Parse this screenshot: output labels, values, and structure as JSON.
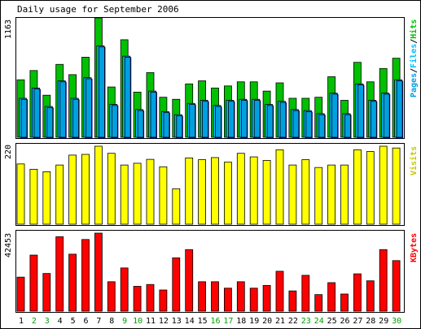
{
  "title": "Daily usage for September 2006",
  "colors": {
    "hits": "#00C000",
    "files": "#00C0FF",
    "pages": "#00A0E0",
    "visits": "#FFFF00",
    "kbytes": "#FF0000",
    "weekend_label": "#00A000",
    "frame": "#000000",
    "background": "#FFFFFF"
  },
  "chart_data": [
    {
      "type": "bar",
      "name": "hits-files-pages",
      "ymax_label": "1163",
      "ylim": [
        0,
        1163
      ],
      "legend": {
        "pages": "Pages",
        "sep1": "/",
        "files": "Files",
        "sep2": "/",
        "hits": "Hits"
      },
      "categories": [
        "1",
        "2",
        "3",
        "4",
        "5",
        "6",
        "7",
        "8",
        "9",
        "10",
        "11",
        "12",
        "13",
        "14",
        "15",
        "16",
        "17",
        "18",
        "19",
        "20",
        "21",
        "22",
        "23",
        "24",
        "25",
        "26",
        "27",
        "28",
        "29",
        "30"
      ],
      "series": [
        {
          "name": "Hits",
          "values": [
            560,
            650,
            410,
            710,
            610,
            780,
            1163,
            490,
            950,
            440,
            630,
            390,
            370,
            520,
            550,
            480,
            500,
            540,
            540,
            450,
            530,
            380,
            380,
            390,
            590,
            360,
            730,
            540,
            670,
            770
          ]
        },
        {
          "name": "Files",
          "values": [
            380,
            480,
            300,
            550,
            380,
            580,
            890,
            320,
            790,
            270,
            450,
            250,
            220,
            330,
            360,
            310,
            360,
            370,
            370,
            320,
            350,
            270,
            260,
            230,
            430,
            230,
            520,
            360,
            430,
            560
          ]
        },
        {
          "name": "Pages",
          "values": [
            370,
            470,
            290,
            540,
            370,
            570,
            880,
            310,
            780,
            260,
            440,
            240,
            210,
            320,
            350,
            300,
            350,
            360,
            360,
            310,
            340,
            260,
            250,
            220,
            420,
            220,
            510,
            350,
            420,
            550
          ]
        }
      ]
    },
    {
      "type": "bar",
      "name": "visits",
      "ymax_label": "220",
      "ylim": [
        0,
        220
      ],
      "legend": {
        "visits": "Visits"
      },
      "categories": [
        "1",
        "2",
        "3",
        "4",
        "5",
        "6",
        "7",
        "8",
        "9",
        "10",
        "11",
        "12",
        "13",
        "14",
        "15",
        "16",
        "17",
        "18",
        "19",
        "20",
        "21",
        "22",
        "23",
        "24",
        "25",
        "26",
        "27",
        "28",
        "29",
        "30"
      ],
      "series": [
        {
          "name": "Visits",
          "values": [
            170,
            155,
            148,
            167,
            195,
            197,
            220,
            200,
            167,
            172,
            183,
            162,
            100,
            187,
            182,
            188,
            175,
            200,
            190,
            180,
            210,
            167,
            182,
            160,
            167,
            167,
            210,
            205,
            220,
            215
          ]
        }
      ]
    },
    {
      "type": "bar",
      "name": "kbytes",
      "ymax_label": "42453",
      "ylim": [
        0,
        42453
      ],
      "legend": {
        "kbytes": "KBytes"
      },
      "categories": [
        "1",
        "2",
        "3",
        "4",
        "5",
        "6",
        "7",
        "8",
        "9",
        "10",
        "11",
        "12",
        "13",
        "14",
        "15",
        "16",
        "17",
        "18",
        "19",
        "20",
        "21",
        "22",
        "23",
        "24",
        "25",
        "26",
        "27",
        "28",
        "29",
        "30"
      ],
      "series": [
        {
          "name": "KBytes",
          "values": [
            18500,
            30500,
            20500,
            40500,
            31000,
            39000,
            42453,
            16000,
            23500,
            13500,
            14500,
            11500,
            29000,
            33500,
            16000,
            16000,
            12500,
            16000,
            12500,
            14000,
            21700,
            11000,
            19500,
            9000,
            15500,
            9300,
            20300,
            16500,
            33500,
            27500
          ]
        }
      ]
    }
  ],
  "x_axis": {
    "labels": [
      "1",
      "2",
      "3",
      "4",
      "5",
      "6",
      "7",
      "8",
      "9",
      "10",
      "11",
      "12",
      "13",
      "14",
      "15",
      "16",
      "17",
      "18",
      "19",
      "20",
      "21",
      "22",
      "23",
      "24",
      "25",
      "26",
      "27",
      "28",
      "29",
      "30"
    ],
    "weekend": [
      false,
      true,
      true,
      false,
      false,
      false,
      false,
      false,
      true,
      true,
      false,
      false,
      false,
      false,
      false,
      true,
      true,
      false,
      false,
      false,
      false,
      false,
      true,
      true,
      false,
      false,
      false,
      false,
      false,
      true
    ]
  }
}
